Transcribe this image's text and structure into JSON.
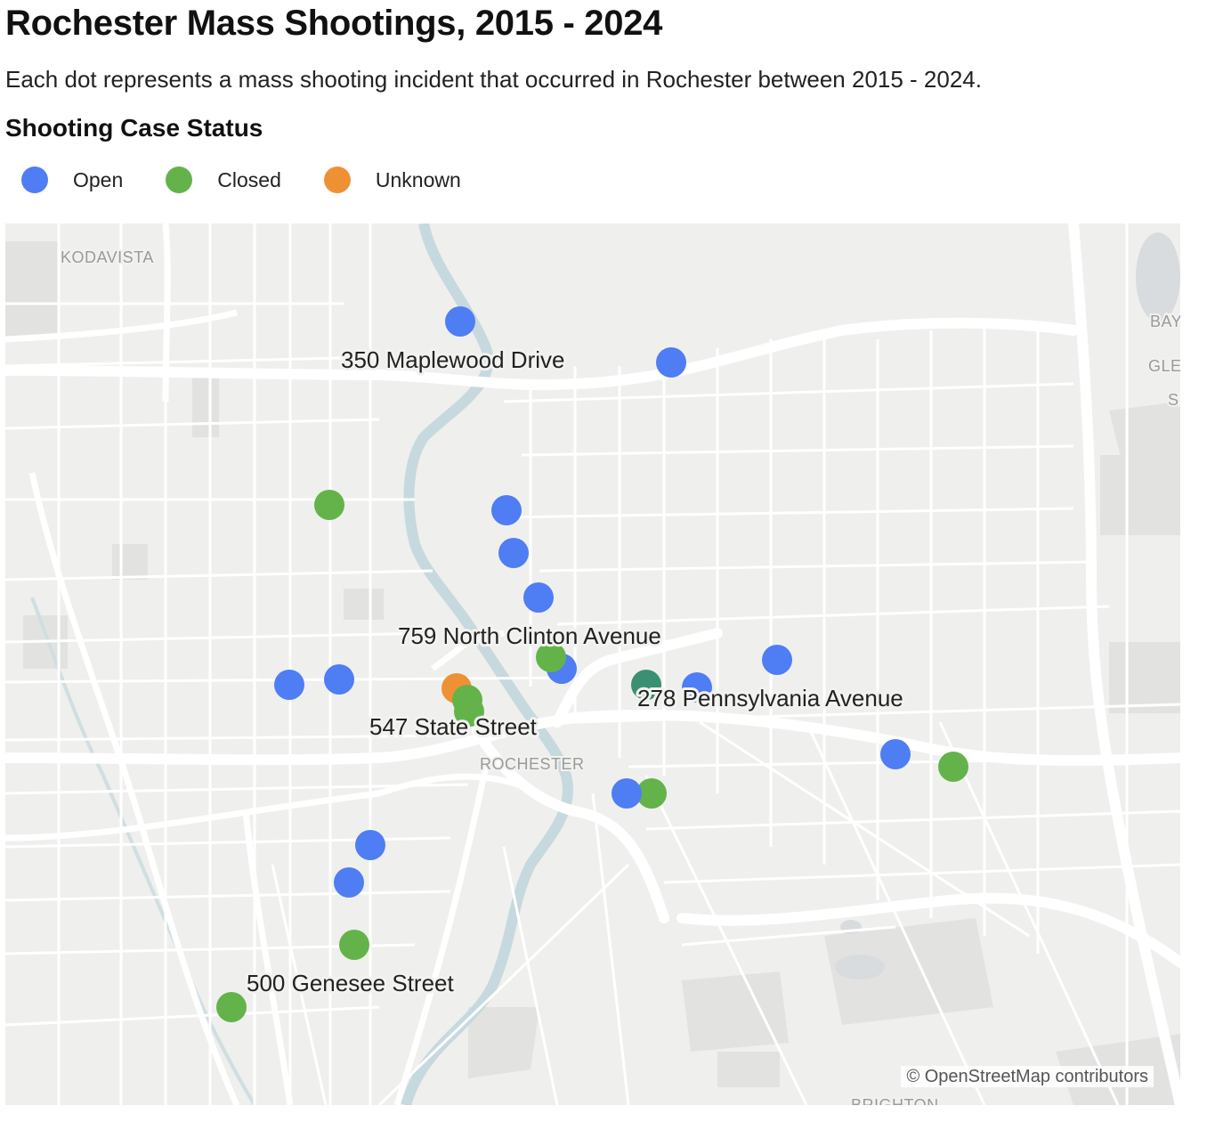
{
  "title": "Rochester Mass Shootings, 2015 - 2024",
  "subtitle": "Each dot represents a mass shooting incident that occurred in Rochester between 2015 - 2024.",
  "legend": {
    "title": "Shooting Case Status",
    "items": [
      {
        "label": "Open",
        "color": "#4f7df3"
      },
      {
        "label": "Closed",
        "color": "#63b34a"
      },
      {
        "label": "Unknown",
        "color": "#ee9135"
      }
    ]
  },
  "map": {
    "place_labels": [
      "KODAVISTA",
      "BAY",
      "GLE",
      "SI",
      "ROCHESTER",
      "BRIGHTON"
    ],
    "street_labels": [
      "350 Maplewood Drive",
      "759 North Clinton Avenue",
      "278 Pennsylvania Avenue",
      "547 State Street",
      "500 Genesee Street"
    ],
    "attribution": "© OpenStreetMap contributors",
    "colors": {
      "land": "#efefed",
      "road": "#ffffff",
      "river": "#c6d9de",
      "park": "#e2e3e1"
    }
  }
}
